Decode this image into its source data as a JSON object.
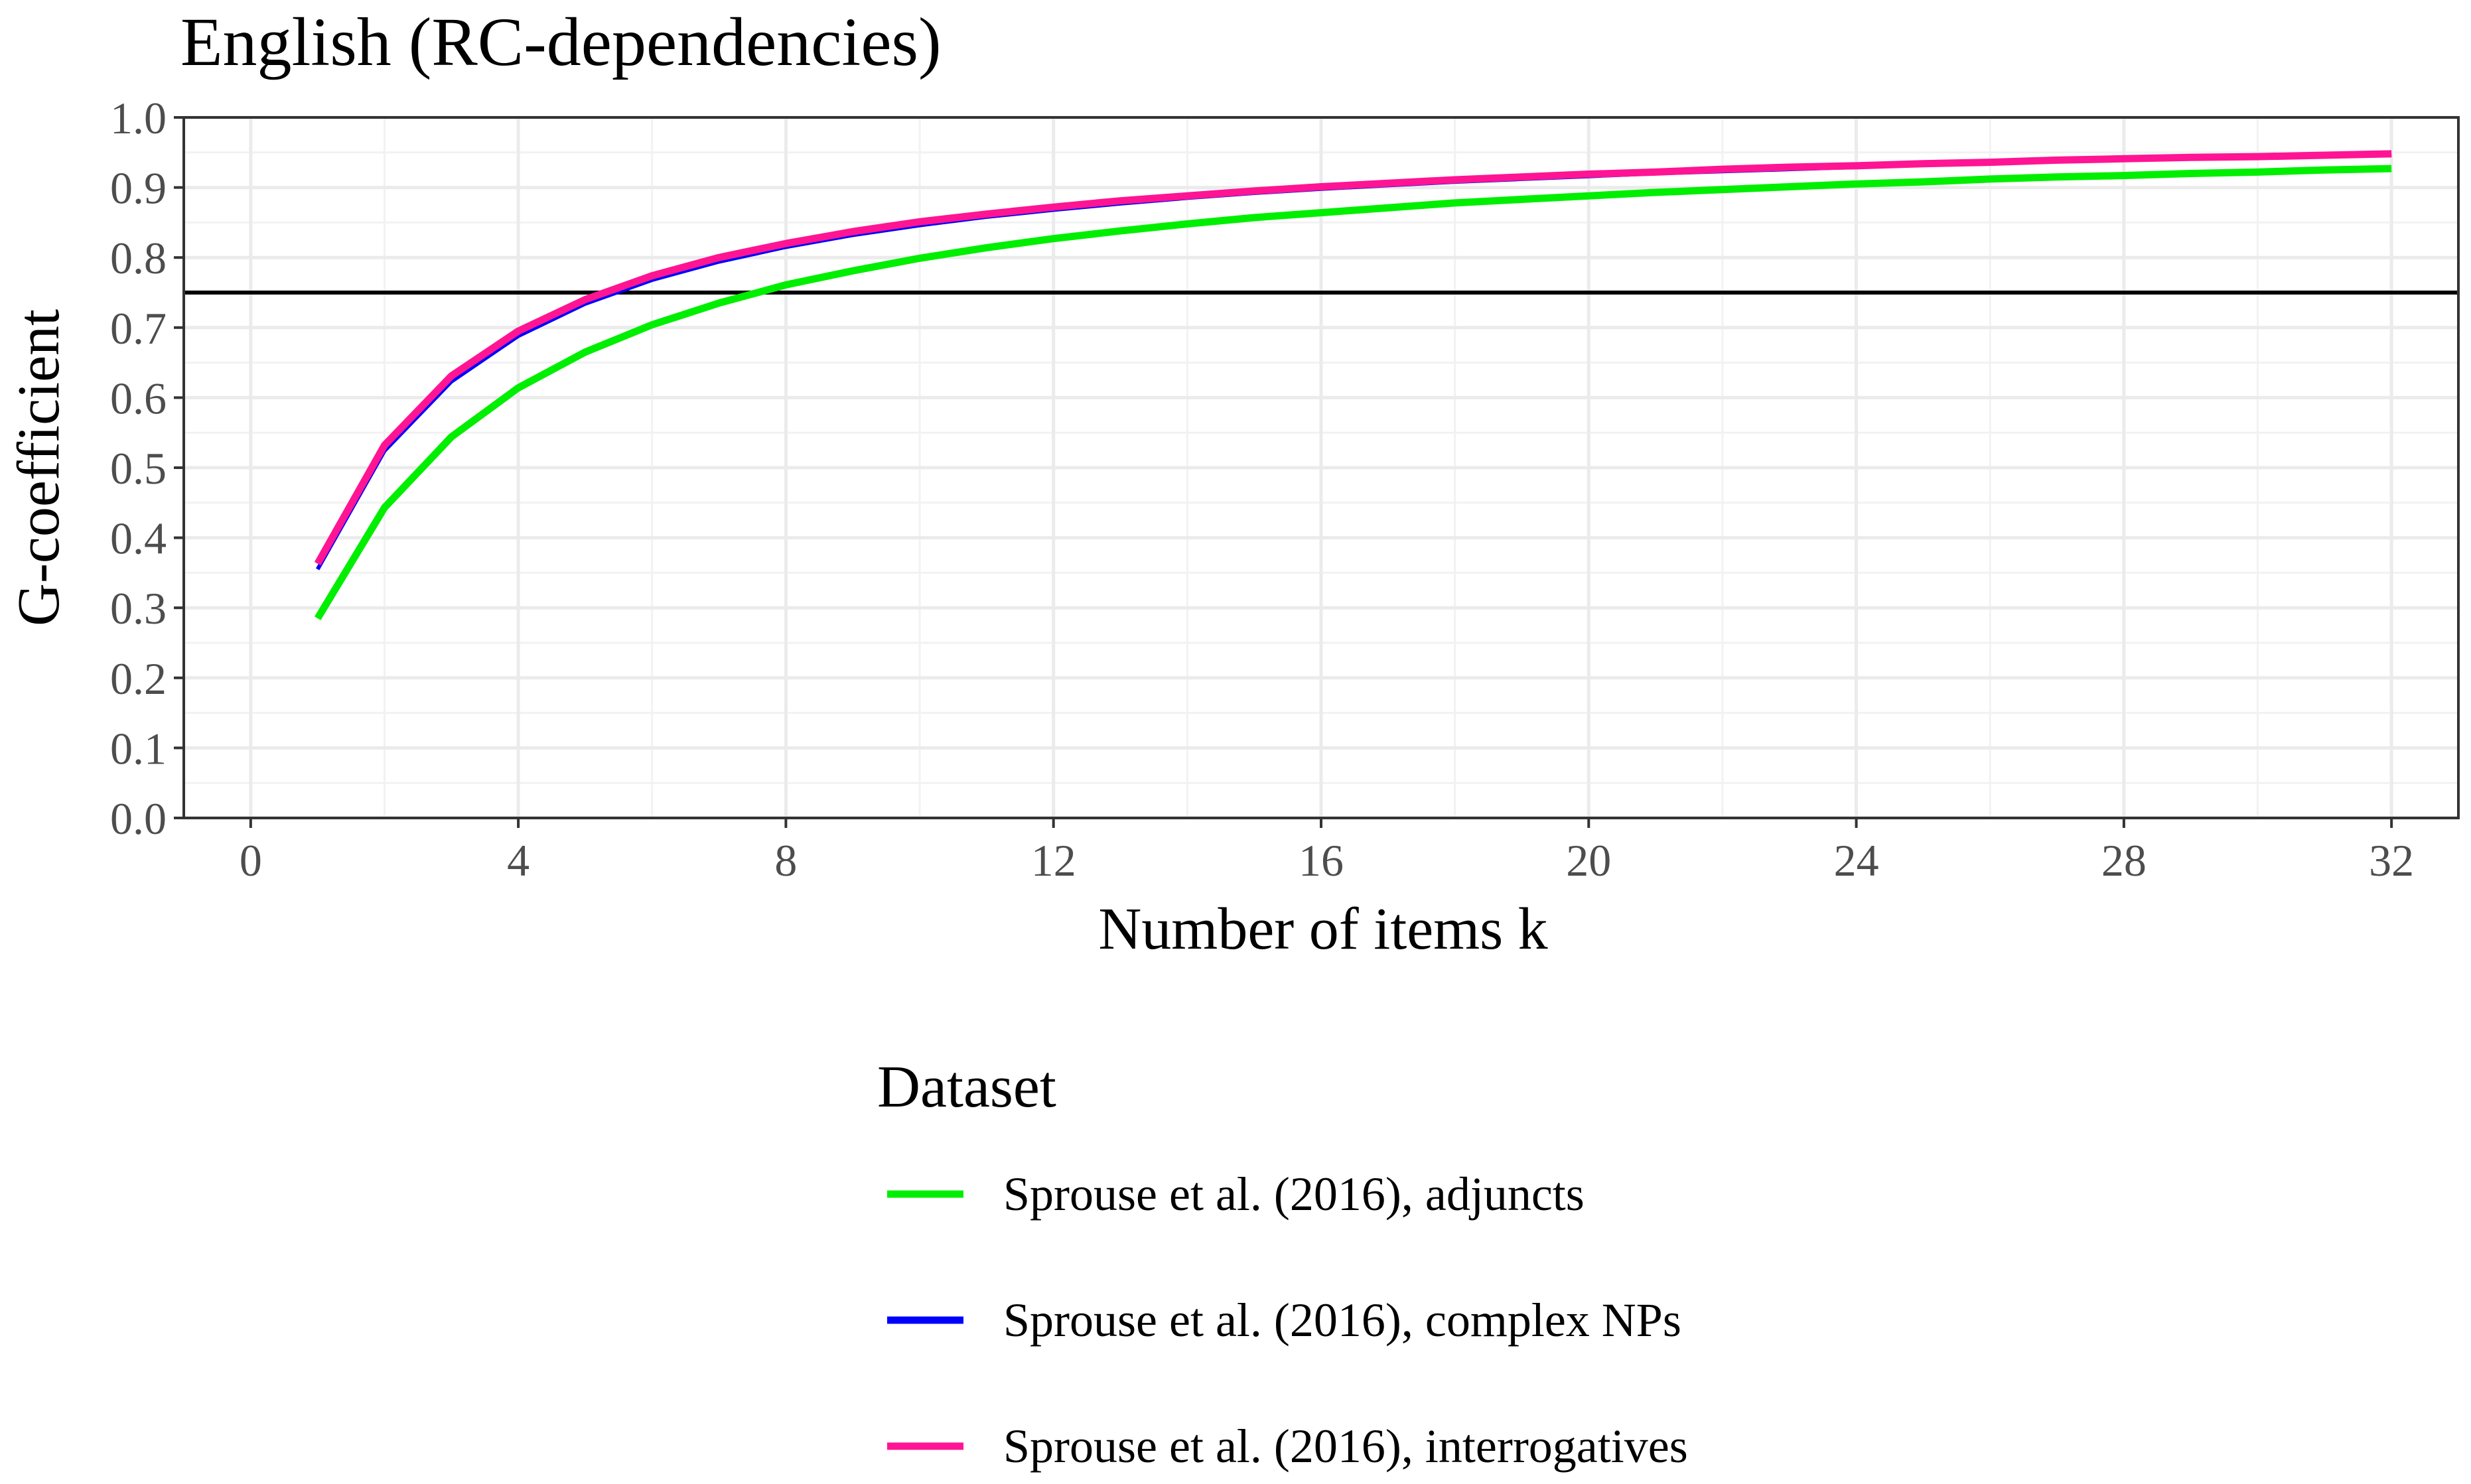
{
  "chart_data": {
    "type": "line",
    "title": "English (RC-dependencies)",
    "xlabel": "Number of items k",
    "ylabel": "G-coefficient",
    "xlim": [
      -1,
      33
    ],
    "ylim": [
      0,
      1
    ],
    "xticks": [
      0,
      4,
      8,
      12,
      16,
      20,
      24,
      28,
      32
    ],
    "xtick_labels": [
      "0",
      "4",
      "8",
      "12",
      "16",
      "20",
      "24",
      "28",
      "32"
    ],
    "yticks": [
      0.0,
      0.1,
      0.2,
      0.3,
      0.4,
      0.5,
      0.6,
      0.7,
      0.8,
      0.9,
      1.0
    ],
    "ytick_labels": [
      "0.0",
      "0.1",
      "0.2",
      "0.3",
      "0.4",
      "0.5",
      "0.6",
      "0.7",
      "0.8",
      "0.9",
      "1.0"
    ],
    "grid": true,
    "reference_line": {
      "y": 0.75,
      "color": "#000000"
    },
    "legend": {
      "title": "Dataset",
      "position": "bottom"
    },
    "x": [
      1,
      2,
      3,
      4,
      5,
      6,
      7,
      8,
      9,
      10,
      11,
      12,
      13,
      14,
      15,
      16,
      17,
      18,
      19,
      20,
      21,
      22,
      23,
      24,
      25,
      26,
      27,
      28,
      29,
      30,
      31,
      32
    ],
    "series": [
      {
        "name": "Sprouse et al. (2016), adjuncts",
        "color": "#00ee00",
        "values": [
          0.285,
          0.443,
          0.544,
          0.614,
          0.665,
          0.704,
          0.735,
          0.761,
          0.781,
          0.799,
          0.814,
          0.827,
          0.838,
          0.848,
          0.857,
          0.864,
          0.871,
          0.878,
          0.883,
          0.888,
          0.893,
          0.897,
          0.901,
          0.905,
          0.908,
          0.912,
          0.915,
          0.917,
          0.92,
          0.922,
          0.925,
          0.927
        ]
      },
      {
        "name": "Sprouse et al. (2016), complex NPs",
        "color": "#0000ff",
        "values": [
          0.355,
          0.524,
          0.623,
          0.688,
          0.734,
          0.768,
          0.794,
          0.815,
          0.832,
          0.846,
          0.858,
          0.868,
          0.877,
          0.885,
          0.892,
          0.898,
          0.903,
          0.908,
          0.912,
          0.916,
          0.92,
          0.923,
          0.926,
          0.929,
          0.932,
          0.934,
          0.937,
          0.939,
          0.941,
          0.943,
          0.945,
          0.946
        ]
      },
      {
        "name": "Sprouse et al. (2016), interrogatives",
        "color": "#ff1493",
        "values": [
          0.363,
          0.532,
          0.631,
          0.695,
          0.74,
          0.774,
          0.8,
          0.82,
          0.837,
          0.851,
          0.862,
          0.872,
          0.881,
          0.888,
          0.895,
          0.901,
          0.906,
          0.911,
          0.915,
          0.919,
          0.922,
          0.926,
          0.929,
          0.931,
          0.934,
          0.936,
          0.939,
          0.941,
          0.943,
          0.944,
          0.946,
          0.948
        ]
      }
    ]
  }
}
